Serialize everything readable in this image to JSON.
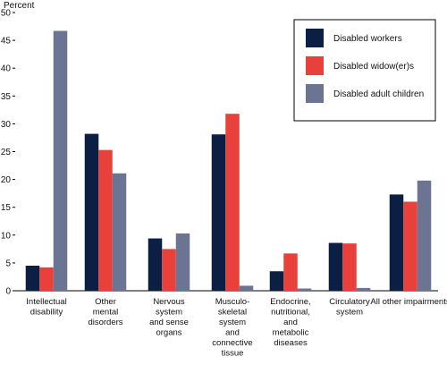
{
  "chart_data": {
    "type": "bar",
    "ylabel": "Percent",
    "ylim": [
      0,
      50
    ],
    "yticks": [
      0,
      5,
      10,
      15,
      20,
      25,
      30,
      35,
      40,
      45,
      50
    ],
    "grid": false,
    "legend_position": "top-right",
    "categories": [
      [
        "Intellectual",
        "disability"
      ],
      [
        "Other",
        "mental",
        "disorders"
      ],
      [
        "Nervous",
        "system",
        "and sense",
        "organs"
      ],
      [
        "Musculo-",
        "skeletal",
        "system",
        "and",
        "connective",
        "tissue"
      ],
      [
        "Endocrine,",
        "nutritional,",
        "and",
        "metabolic",
        "diseases"
      ],
      [
        "Circulatory",
        "system"
      ],
      [
        "All other impairments"
      ]
    ],
    "series": [
      {
        "name": "Disabled workers",
        "color": "#0b1f45",
        "values": [
          4.5,
          28.2,
          9.4,
          28.1,
          3.5,
          8.6,
          17.3
        ]
      },
      {
        "name": "Disabled widow(er)s",
        "color": "#e8403a",
        "values": [
          4.2,
          25.3,
          7.5,
          31.8,
          6.7,
          8.5,
          16.0
        ]
      },
      {
        "name": "Disabled adult children",
        "color": "#6b7593",
        "values": [
          46.7,
          21.1,
          10.3,
          0.9,
          0.4,
          0.5,
          19.8
        ]
      }
    ]
  }
}
